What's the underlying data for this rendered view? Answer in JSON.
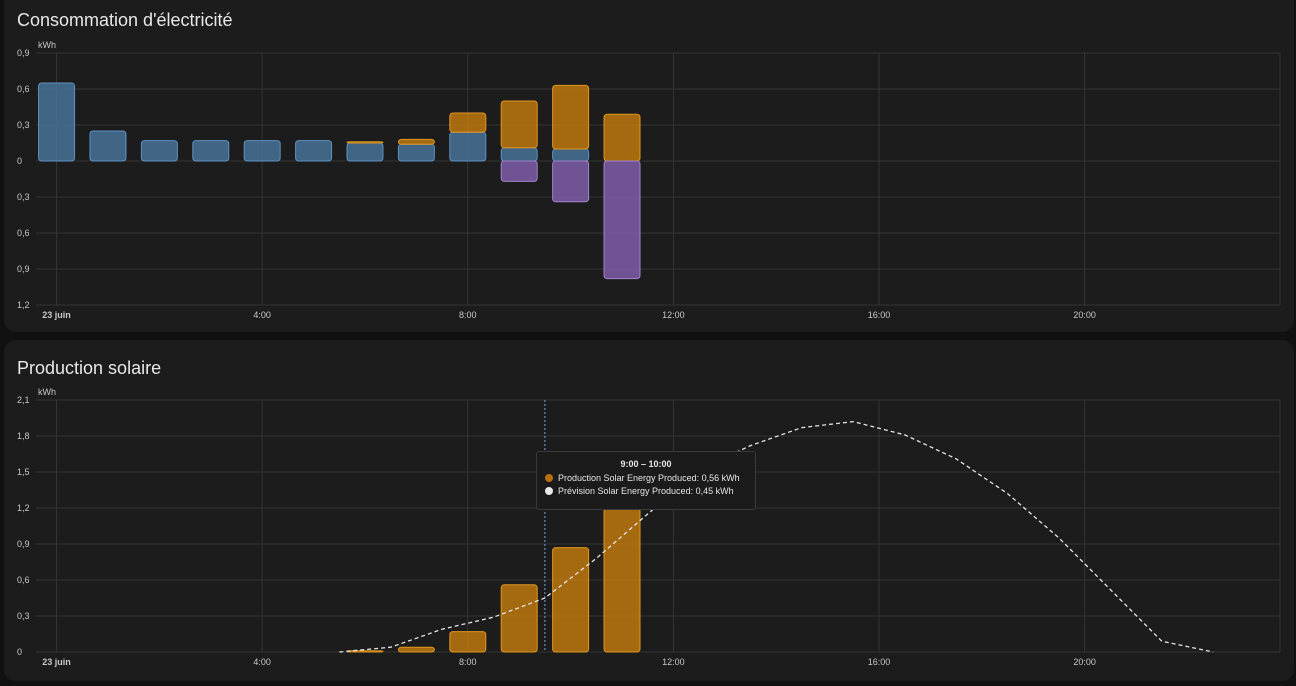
{
  "cards": [
    {
      "title": "Consommation d'électricité"
    },
    {
      "title": "Production solaire"
    }
  ],
  "tooltip": {
    "title": "9:00 – 10:00",
    "rows": [
      {
        "color": "#b86f0c",
        "text": "Production Solar Energy Produced: 0,56 kWh"
      },
      {
        "color": "#e8e8e8",
        "text": "Prévision Solar Energy Produced: 0,45 kWh"
      }
    ]
  },
  "chart_data": [
    {
      "type": "bar",
      "stacked": true,
      "unit": "kWh",
      "x_ticks": [
        {
          "hour": 0,
          "label": "23 juin",
          "bold": true
        },
        {
          "hour": 4,
          "label": "4:00"
        },
        {
          "hour": 8,
          "label": "8:00"
        },
        {
          "hour": 12,
          "label": "12:00"
        },
        {
          "hour": 16,
          "label": "16:00"
        },
        {
          "hour": 20,
          "label": "20:00"
        }
      ],
      "y_ticks": [
        {
          "value": 0.9,
          "label": "0,9"
        },
        {
          "value": 0.6,
          "label": "0,6"
        },
        {
          "value": 0.3,
          "label": "0,3"
        },
        {
          "value": 0,
          "label": "0"
        },
        {
          "value": -0.3,
          "label": "0,3"
        },
        {
          "value": -0.6,
          "label": "0,6"
        },
        {
          "value": -0.9,
          "label": "0,9"
        },
        {
          "value": -1.2,
          "label": "1,2"
        }
      ],
      "xlim": [
        -0.4,
        23.8
      ],
      "ylim": [
        -1.2,
        0.9
      ],
      "x": [
        0,
        1,
        2,
        3,
        4,
        5,
        6,
        7,
        8,
        9,
        10,
        11
      ],
      "series": [
        {
          "color": "#4a78a0",
          "stroke": "#5d92c2",
          "values": [
            0.65,
            0.25,
            0.17,
            0.17,
            0.17,
            0.17,
            0.15,
            0.14,
            0.24,
            0.11,
            0.1,
            0.0
          ]
        },
        {
          "color": "#c87e0e",
          "stroke": "#e0961f",
          "values": [
            0,
            0,
            0,
            0,
            0,
            0,
            0.01,
            0.04,
            0.16,
            0.39,
            0.53,
            0.39
          ]
        },
        {
          "color": "#8462b0",
          "stroke": "#a283cc",
          "values": [
            0,
            0,
            0,
            0,
            0,
            0,
            0,
            0,
            0,
            -0.17,
            -0.34,
            -0.98
          ]
        }
      ]
    },
    {
      "type": "bar",
      "unit": "kWh",
      "x_ticks": [
        {
          "hour": 0,
          "label": "23 juin",
          "bold": true
        },
        {
          "hour": 4,
          "label": "4:00"
        },
        {
          "hour": 8,
          "label": "8:00"
        },
        {
          "hour": 12,
          "label": "12:00"
        },
        {
          "hour": 16,
          "label": "16:00"
        },
        {
          "hour": 20,
          "label": "20:00"
        }
      ],
      "y_ticks": [
        {
          "value": 2.1,
          "label": "2,1"
        },
        {
          "value": 1.8,
          "label": "1,8"
        },
        {
          "value": 1.5,
          "label": "1,5"
        },
        {
          "value": 1.2,
          "label": "1,2"
        },
        {
          "value": 0.9,
          "label": "0,9"
        },
        {
          "value": 0.6,
          "label": "0,6"
        },
        {
          "value": 0.3,
          "label": "0,3"
        },
        {
          "value": 0,
          "label": "0"
        }
      ],
      "xlim": [
        -0.4,
        23.8
      ],
      "ylim": [
        0,
        2.1
      ],
      "bars": {
        "color": "#c87e0e",
        "stroke": "#e0961f",
        "x": [
          6,
          7,
          8,
          9,
          10,
          11
        ],
        "values": [
          0.01,
          0.04,
          0.17,
          0.56,
          0.87,
          1.2
        ]
      },
      "forecast": {
        "color": "#e6e6e6",
        "x": [
          5,
          6,
          7,
          8,
          9,
          10,
          11,
          12,
          13,
          14,
          15,
          16,
          17,
          18,
          19,
          20,
          21,
          22
        ],
        "values": [
          0.0,
          0.04,
          0.19,
          0.29,
          0.45,
          0.78,
          1.15,
          1.52,
          1.72,
          1.87,
          1.92,
          1.81,
          1.61,
          1.32,
          0.95,
          0.52,
          0.09,
          0.0
        ]
      },
      "cursor_x": 9
    }
  ]
}
